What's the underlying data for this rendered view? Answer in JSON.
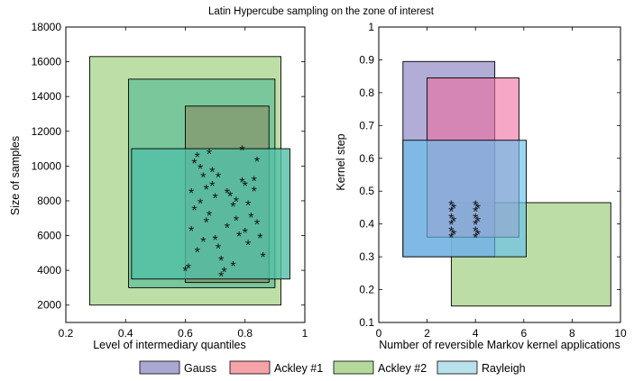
{
  "figure_title": "Latin Hypercube sampling on the zone of interest",
  "colors": {
    "Gauss": "#a9a8d3",
    "Ackley #1": "#f5a3a9",
    "Ackley #2": "#b5d99b",
    "Rayleigh": "#b9e1ec"
  },
  "legend": {
    "items": [
      "Gauss",
      "Ackley #1",
      "Ackley #2",
      "Rayleigh"
    ],
    "placement": "bottom"
  },
  "chart_data": [
    {
      "type": "scatter",
      "title": "",
      "xlabel": "Level of intermediary quantiles",
      "ylabel": "Size of samples",
      "xlim": [
        0.2,
        1
      ],
      "ylim": [
        1000,
        18000
      ],
      "xticks": [
        "0.2",
        "0.4",
        "0.6",
        "0.8",
        "1"
      ],
      "yticks": [
        "2000",
        "4000",
        "6000",
        "8000",
        "10000",
        "12000",
        "14000",
        "16000",
        "18000"
      ],
      "grid": false,
      "zones": [
        {
          "name": "Ackley #2",
          "x": [
            0.28,
            0.92
          ],
          "y": [
            2000,
            16300
          ],
          "color": "#b5d99b",
          "opacity": 0.88
        },
        {
          "name": "Ackley #2 overlap",
          "x": [
            0.41,
            0.9
          ],
          "y": [
            3000,
            15000
          ],
          "color": "#5cbd96",
          "opacity": 0.7
        },
        {
          "name": "Ackley #1 overlap",
          "x": [
            0.6,
            0.88
          ],
          "y": [
            3300,
            13450
          ],
          "color": "#86956b",
          "opacity": 0.75
        },
        {
          "name": "Rayleigh",
          "x": [
            0.42,
            0.95
          ],
          "y": [
            3500,
            11000
          ],
          "color": "#51bfa6",
          "opacity": 0.8
        }
      ],
      "points": [
        [
          0.6,
          4000
        ],
        [
          0.61,
          4150
        ],
        [
          0.63,
          10200
        ],
        [
          0.64,
          10550
        ],
        [
          0.65,
          9900
        ],
        [
          0.66,
          9400
        ],
        [
          0.67,
          8700
        ],
        [
          0.65,
          7900
        ],
        [
          0.66,
          5700
        ],
        [
          0.67,
          6800
        ],
        [
          0.68,
          10750
        ],
        [
          0.69,
          9700
        ],
        [
          0.7,
          8200
        ],
        [
          0.71,
          5300
        ],
        [
          0.72,
          4600
        ],
        [
          0.73,
          3950
        ],
        [
          0.74,
          8500
        ],
        [
          0.75,
          8300
        ],
        [
          0.76,
          7700
        ],
        [
          0.77,
          6900
        ],
        [
          0.78,
          6000
        ],
        [
          0.79,
          9100
        ],
        [
          0.8,
          8900
        ],
        [
          0.8,
          6200
        ],
        [
          0.81,
          5500
        ],
        [
          0.82,
          7100
        ],
        [
          0.83,
          9200
        ],
        [
          0.84,
          10300
        ],
        [
          0.85,
          5900
        ],
        [
          0.86,
          4800
        ],
        [
          0.79,
          10950
        ],
        [
          0.68,
          7200
        ],
        [
          0.63,
          7500
        ],
        [
          0.62,
          6300
        ],
        [
          0.7,
          5800
        ],
        [
          0.74,
          6500
        ],
        [
          0.76,
          4300
        ],
        [
          0.72,
          3700
        ],
        [
          0.81,
          7800
        ],
        [
          0.84,
          6700
        ],
        [
          0.71,
          9400
        ],
        [
          0.77,
          8000
        ],
        [
          0.64,
          5100
        ],
        [
          0.83,
          8600
        ],
        [
          0.69,
          8900
        ],
        [
          0.62,
          8500
        ]
      ]
    },
    {
      "type": "scatter",
      "title": "",
      "xlabel": "Number of reversible Markov kernel applications",
      "ylabel": "Kernel step",
      "xlim": [
        0,
        10
      ],
      "ylim": [
        0.1,
        1
      ],
      "xticks": [
        "0",
        "2",
        "4",
        "6",
        "8",
        "10"
      ],
      "yticks": [
        "0.1",
        "0.2",
        "0.3",
        "0.4",
        "0.5",
        "0.6",
        "0.7",
        "0.8",
        "0.9",
        "1"
      ],
      "grid": false,
      "zones": [
        {
          "name": "Ackley #2",
          "x": [
            3,
            9.6
          ],
          "y": [
            0.15,
            0.465
          ],
          "color": "#b5d99b",
          "opacity": 0.9
        },
        {
          "name": "Gauss",
          "x": [
            1,
            4.8
          ],
          "y": [
            0.3,
            0.895
          ],
          "color": "#9e99cd",
          "opacity": 0.8
        },
        {
          "name": "Ackley #1",
          "x": [
            2,
            5.8
          ],
          "y": [
            0.36,
            0.845
          ],
          "color": "#ee6d9e",
          "opacity": 0.6
        },
        {
          "name": "Rayleigh",
          "x": [
            1,
            6.1
          ],
          "y": [
            0.3,
            0.655
          ],
          "color": "#66c0ec",
          "opacity": 0.65
        }
      ],
      "points": [
        [
          3,
          0.36
        ],
        [
          3,
          0.38
        ],
        [
          3,
          0.4
        ],
        [
          3,
          0.42
        ],
        [
          3,
          0.44
        ],
        [
          3,
          0.46
        ],
        [
          3.1,
          0.37
        ],
        [
          3.1,
          0.41
        ],
        [
          3.1,
          0.45
        ],
        [
          4,
          0.36
        ],
        [
          4,
          0.38
        ],
        [
          4,
          0.4
        ],
        [
          4,
          0.42
        ],
        [
          4,
          0.44
        ],
        [
          4,
          0.46
        ],
        [
          4.1,
          0.37
        ],
        [
          4.1,
          0.41
        ],
        [
          4.1,
          0.45
        ]
      ]
    }
  ]
}
